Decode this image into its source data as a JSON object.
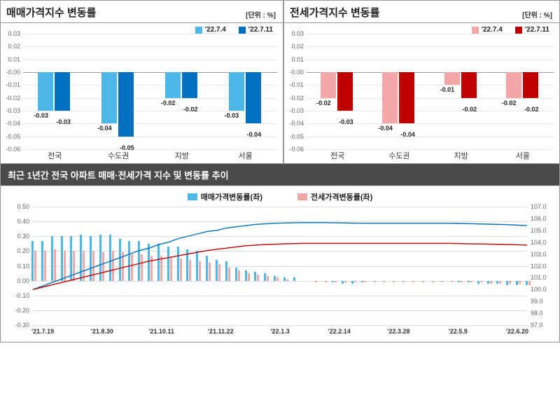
{
  "top_left": {
    "title": "매매가격지수 변동률",
    "unit": "[단위 : %]",
    "legend": [
      {
        "label": "'22.7.4",
        "color": "#4bb8e8"
      },
      {
        "label": "'22.7.11",
        "color": "#0070c0"
      }
    ],
    "y": {
      "min": -0.06,
      "max": 0.03,
      "step": 0.01
    },
    "categories": [
      "전국",
      "수도권",
      "지방",
      "서울"
    ],
    "series1": [
      -0.03,
      -0.04,
      -0.02,
      -0.03
    ],
    "series2": [
      -0.03,
      -0.05,
      -0.02,
      -0.04
    ],
    "colors": [
      "#4bb8e8",
      "#0070c0"
    ]
  },
  "top_right": {
    "title": "전세가격지수 변동률",
    "unit": "[단위 : %]",
    "legend": [
      {
        "label": "'22.7.4",
        "color": "#f4a6a6"
      },
      {
        "label": "'22.7.11",
        "color": "#c00000"
      }
    ],
    "y": {
      "min": -0.06,
      "max": 0.03,
      "step": 0.01
    },
    "categories": [
      "전국",
      "수도권",
      "지방",
      "서울"
    ],
    "series1": [
      -0.02,
      -0.04,
      -0.01,
      -0.02
    ],
    "series2": [
      -0.03,
      -0.04,
      -0.02,
      -0.02
    ],
    "colors": [
      "#f4a6a6",
      "#c00000"
    ]
  },
  "bottom": {
    "title": "최근 1년간 전국 아파트 매매·전세가격 지수 및 변동률 추이",
    "legend": [
      {
        "label": "매매가격변동률(좌)",
        "color": "#4bb8e8"
      },
      {
        "label": "전세가격변동률(좌)",
        "color": "#f4a6a6"
      }
    ],
    "line_colors": {
      "sale": "#0070c0",
      "jeonse": "#c00000"
    },
    "y_left": {
      "min": -0.3,
      "max": 0.5,
      "step": 0.1
    },
    "y_right": {
      "min": 97.0,
      "max": 107.0,
      "step": 1.0
    },
    "x_labels": [
      "'21.7.19",
      "'21.8.30",
      "'21.10.11",
      "'21.11.22",
      "'22.1.3",
      "'22.2.14",
      "'22.3.28",
      "'22.5.9",
      "'22.6.20"
    ],
    "n_points": 52,
    "sale_bars": [
      0.27,
      0.27,
      0.3,
      0.3,
      0.3,
      0.31,
      0.3,
      0.31,
      0.31,
      0.28,
      0.27,
      0.27,
      0.25,
      0.25,
      0.23,
      0.23,
      0.21,
      0.2,
      0.17,
      0.14,
      0.13,
      0.09,
      0.07,
      0.06,
      0.05,
      0.03,
      0.02,
      0.02,
      0.0,
      0.0,
      0.0,
      -0.01,
      -0.02,
      -0.02,
      -0.01,
      0.0,
      0.0,
      0.0,
      0.0,
      0.0,
      0.0,
      0.0,
      0.0,
      0.0,
      -0.01,
      -0.01,
      -0.02,
      -0.02,
      -0.02,
      -0.03,
      -0.03,
      -0.03
    ],
    "jeonse_bars": [
      0.2,
      0.2,
      0.21,
      0.2,
      0.2,
      0.2,
      0.2,
      0.19,
      0.2,
      0.19,
      0.18,
      0.18,
      0.17,
      0.17,
      0.16,
      0.15,
      0.14,
      0.13,
      0.12,
      0.11,
      0.09,
      0.07,
      0.05,
      0.04,
      0.03,
      0.02,
      0.01,
      0.0,
      0.0,
      -0.01,
      -0.01,
      -0.01,
      -0.01,
      -0.01,
      -0.01,
      -0.01,
      -0.01,
      -0.01,
      -0.01,
      -0.01,
      -0.01,
      -0.01,
      -0.01,
      -0.01,
      -0.01,
      -0.01,
      -0.01,
      -0.02,
      -0.02,
      -0.02,
      -0.02,
      -0.03
    ],
    "sale_index": [
      100.0,
      100.3,
      100.6,
      100.9,
      101.2,
      101.5,
      101.8,
      102.1,
      102.4,
      102.7,
      103.0,
      103.3,
      103.5,
      103.8,
      104.0,
      104.3,
      104.5,
      104.7,
      104.9,
      105.0,
      105.2,
      105.3,
      105.4,
      105.5,
      105.55,
      105.6,
      105.62,
      105.64,
      105.65,
      105.65,
      105.65,
      105.64,
      105.63,
      105.61,
      105.6,
      105.6,
      105.6,
      105.6,
      105.6,
      105.6,
      105.6,
      105.6,
      105.6,
      105.6,
      105.58,
      105.56,
      105.54,
      105.52,
      105.5,
      105.48,
      105.44,
      105.4
    ],
    "jeonse_index": [
      100.0,
      100.2,
      100.4,
      100.6,
      100.8,
      101.0,
      101.2,
      101.4,
      101.6,
      101.8,
      102.0,
      102.2,
      102.4,
      102.55,
      102.7,
      102.85,
      103.0,
      103.15,
      103.3,
      103.4,
      103.5,
      103.6,
      103.7,
      103.75,
      103.8,
      103.83,
      103.86,
      103.88,
      103.9,
      103.9,
      103.9,
      103.9,
      103.9,
      103.9,
      103.9,
      103.9,
      103.9,
      103.9,
      103.9,
      103.9,
      103.9,
      103.9,
      103.9,
      103.9,
      103.88,
      103.86,
      103.85,
      103.84,
      103.82,
      103.8,
      103.78,
      103.75
    ]
  }
}
